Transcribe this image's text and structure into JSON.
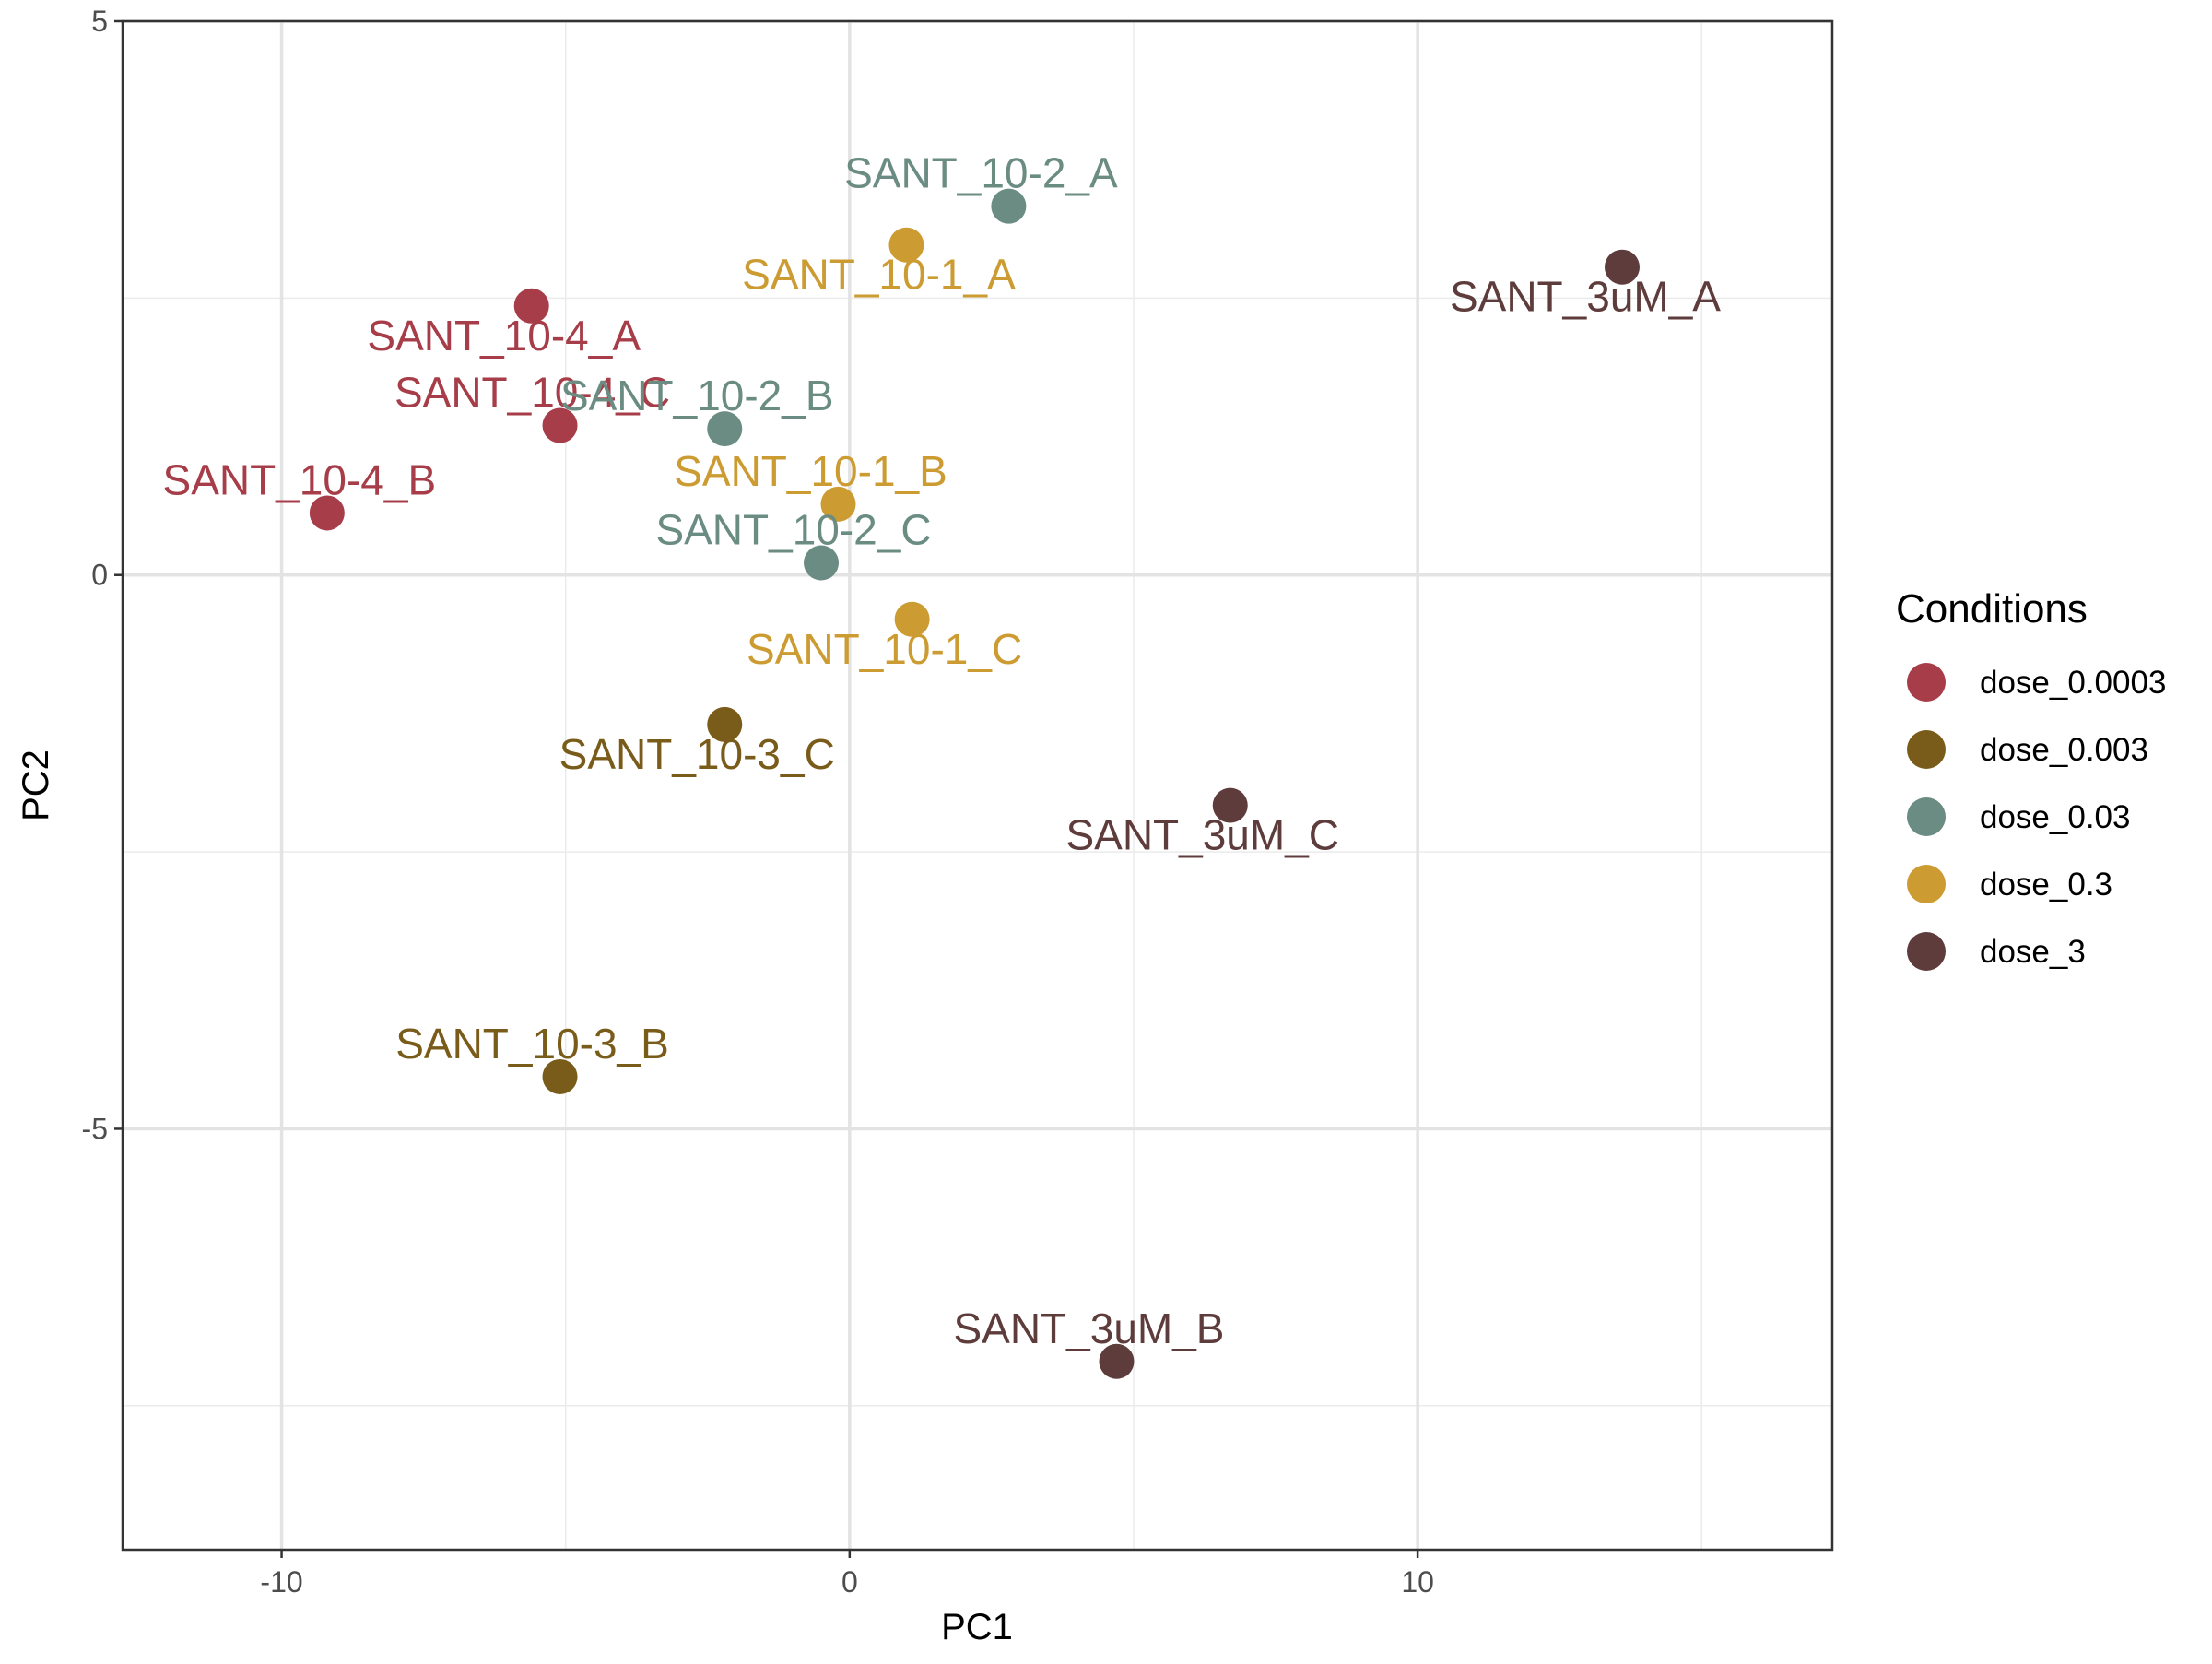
{
  "chart_data": {
    "type": "scatter",
    "title": "",
    "xlabel": "PC1",
    "ylabel": "PC2",
    "xlim": [
      -12.8,
      17.3
    ],
    "ylim": [
      -8.8,
      5.0
    ],
    "x_ticks": [
      -10,
      0,
      10
    ],
    "y_ticks": [
      -5,
      0,
      5
    ],
    "grid": true,
    "legend": {
      "title": "Conditions",
      "position": "right"
    },
    "series": [
      {
        "name": "dose_0.0003",
        "color": "#A63D48",
        "points": [
          {
            "label": "SANT_10-4_A",
            "x": -5.6,
            "y": 2.43
          },
          {
            "label": "SANT_10-4_B",
            "x": -9.2,
            "y": 0.56
          },
          {
            "label": "SANT_10-4_C",
            "x": -5.1,
            "y": 1.35
          }
        ]
      },
      {
        "name": "dose_0.003",
        "color": "#7A5C1A",
        "points": [
          {
            "label": "SANT_10-3_B",
            "x": -5.1,
            "y": -4.53
          },
          {
            "label": "SANT_10-3_C",
            "x": -2.2,
            "y": -1.35
          }
        ]
      },
      {
        "name": "dose_0.03",
        "color": "#6B8C82",
        "points": [
          {
            "label": "SANT_10-2_A",
            "x": 2.8,
            "y": 3.33
          },
          {
            "label": "SANT_10-2_B",
            "x": -2.2,
            "y": 1.32
          },
          {
            "label": "SANT_10-2_C",
            "x": -0.5,
            "y": 0.11
          }
        ]
      },
      {
        "name": "dose_0.3",
        "color": "#CC9C33",
        "points": [
          {
            "label": "SANT_10-1_A",
            "x": 1.0,
            "y": 2.98
          },
          {
            "label": "SANT_10-1_B",
            "x": -0.2,
            "y": 0.64
          },
          {
            "label": "SANT_10-1_C",
            "x": 1.1,
            "y": -0.4
          }
        ]
      },
      {
        "name": "dose_3",
        "color": "#5E3C3C",
        "points": [
          {
            "label": "SANT_3uM_A",
            "x": 13.6,
            "y": 2.78
          },
          {
            "label": "SANT_3uM_B",
            "x": 4.7,
            "y": -7.1
          },
          {
            "label": "SANT_3uM_C",
            "x": 6.7,
            "y": -2.08
          }
        ]
      }
    ]
  }
}
